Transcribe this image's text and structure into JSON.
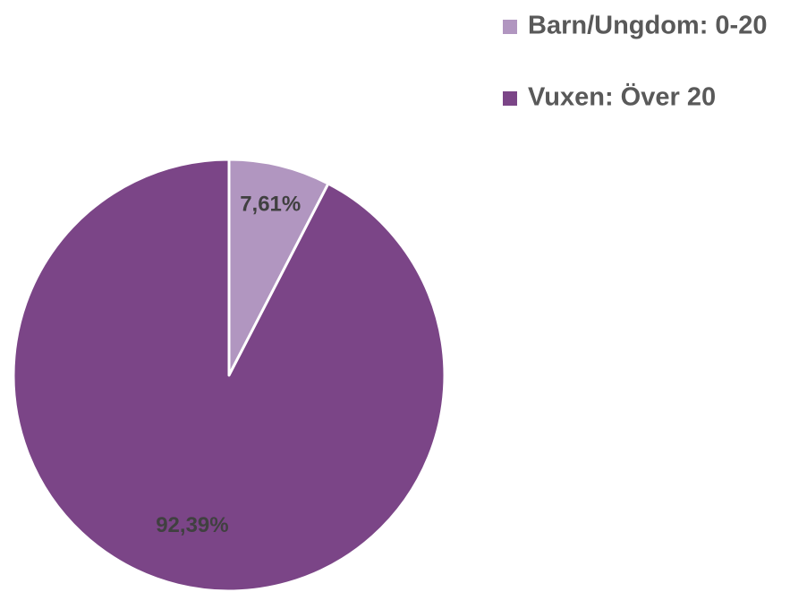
{
  "chart_data": {
    "type": "pie",
    "categories": [
      "Barn/Ungdom: 0-20",
      "Vuxen: Över 20"
    ],
    "values": [
      7.61,
      92.39
    ],
    "value_labels": [
      "7,61%",
      "92,39%"
    ],
    "colors": [
      "#b196c0",
      "#7b4587"
    ],
    "legend": "top-right"
  }
}
